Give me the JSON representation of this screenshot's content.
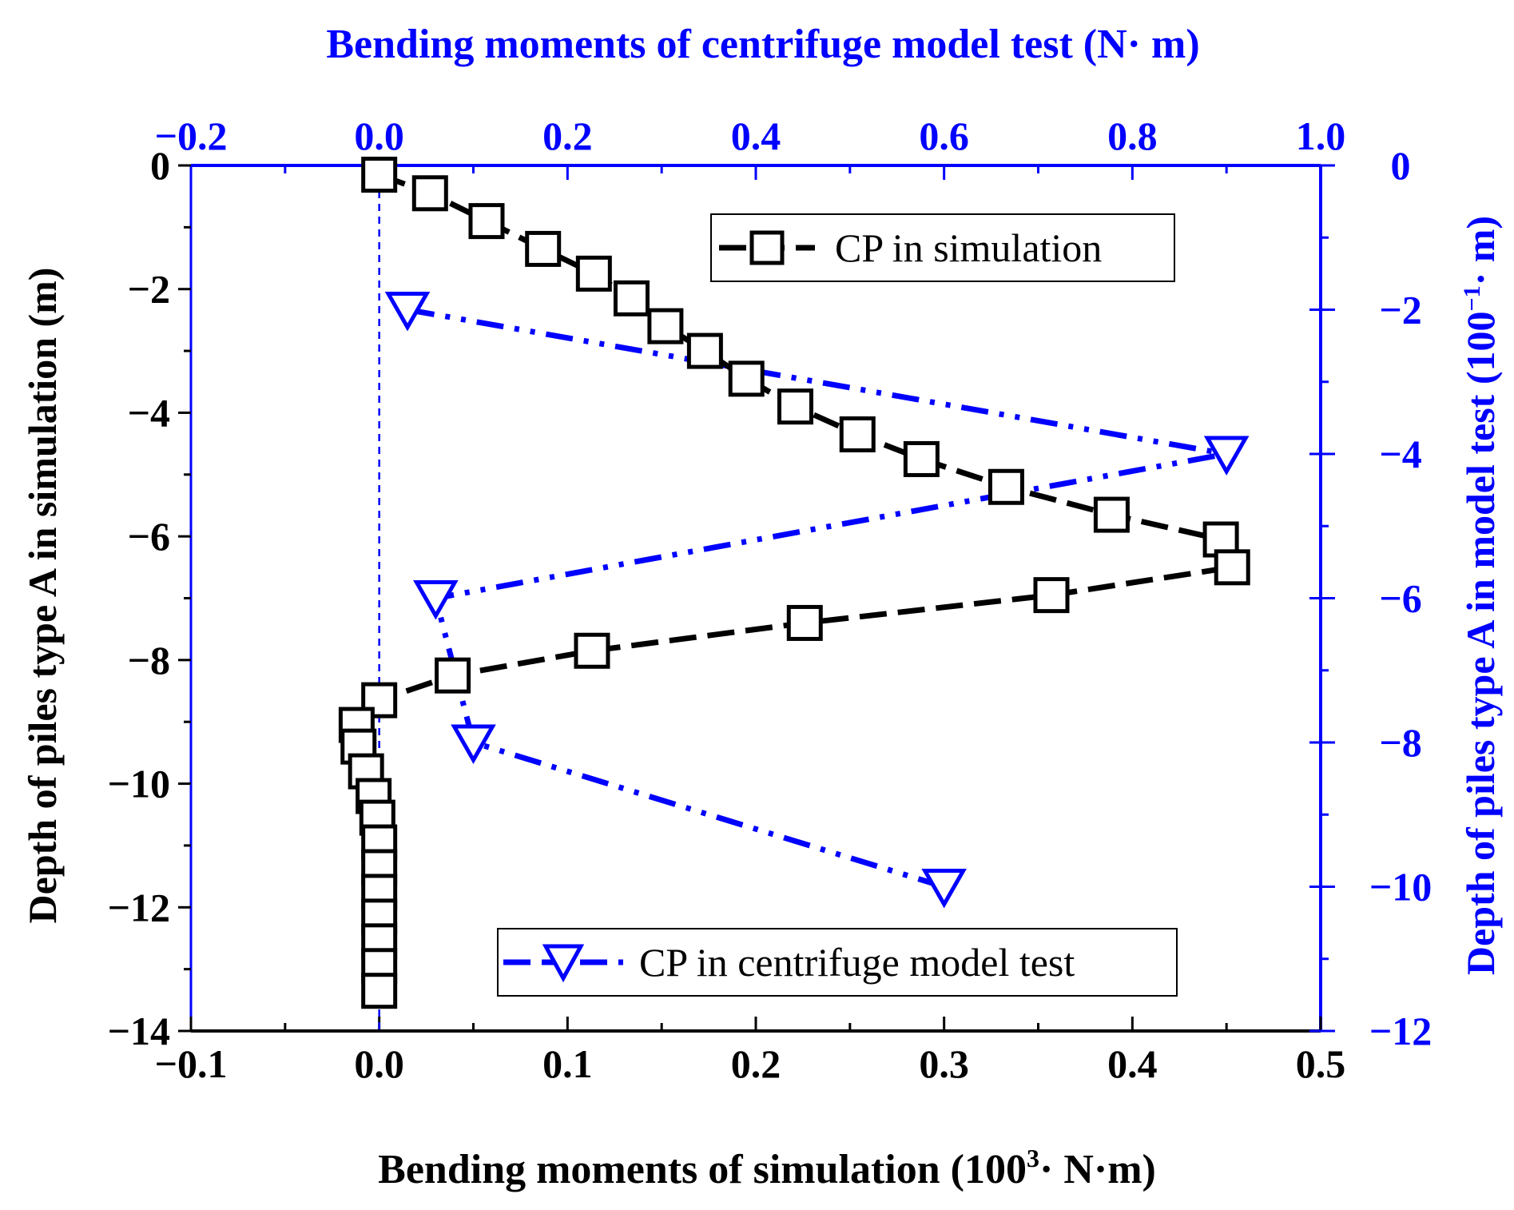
{
  "chart_data": {
    "type": "line",
    "title_top": "Bending moments of centrifuge model test (N· m)",
    "xlabel_bottom": "Bending moments of  simulation (100",
    "xlabel_bottom_sup": "3",
    "xlabel_bottom_end": "· N·m)",
    "ylabel_left": "Depth of piles type A in simulation (m)",
    "ylabel_right_pre": "Depth of piles type A in model test (100",
    "ylabel_right_sup": "−1",
    "ylabel_right_end": "· m)",
    "x_bottom": {
      "range": [
        -0.1,
        0.5
      ],
      "ticks": [
        "−0.1",
        "0.0",
        "0.1",
        "0.2",
        "0.3",
        "0.4",
        "0.5"
      ],
      "tick_values": [
        -0.1,
        0.0,
        0.1,
        0.2,
        0.3,
        0.4,
        0.5
      ]
    },
    "x_top": {
      "range": [
        -0.2,
        1.0
      ],
      "ticks": [
        "−0.2",
        "0.0",
        "0.2",
        "0.4",
        "0.6",
        "0.8",
        "1.0"
      ],
      "tick_values": [
        -0.2,
        0.0,
        0.2,
        0.4,
        0.6,
        0.8,
        1.0
      ]
    },
    "y_left": {
      "range": [
        -14,
        0
      ],
      "ticks": [
        "0",
        "−2",
        "−4",
        "−6",
        "−8",
        "−10",
        "−12",
        "−14"
      ],
      "tick_values": [
        0,
        -2,
        -4,
        -6,
        -8,
        -10,
        -12,
        -14
      ]
    },
    "y_right": {
      "range": [
        -12,
        0
      ],
      "ticks": [
        "0",
        "−2",
        "−4",
        "−6",
        "−8",
        "−10",
        "−12"
      ],
      "tick_values": [
        0,
        -2,
        -4,
        -6,
        -8,
        -10,
        -12
      ]
    },
    "series": [
      {
        "name": "CP in simulation",
        "color": "#000000",
        "marker": "square",
        "axes": "bottom-left",
        "points": [
          {
            "x": 0.0,
            "y": -0.15
          },
          {
            "x": 0.027,
            "y": -0.45
          },
          {
            "x": 0.057,
            "y": -0.9
          },
          {
            "x": 0.087,
            "y": -1.35
          },
          {
            "x": 0.114,
            "y": -1.75
          },
          {
            "x": 0.134,
            "y": -2.15
          },
          {
            "x": 0.152,
            "y": -2.6
          },
          {
            "x": 0.173,
            "y": -3.0
          },
          {
            "x": 0.195,
            "y": -3.45
          },
          {
            "x": 0.221,
            "y": -3.9
          },
          {
            "x": 0.254,
            "y": -4.35
          },
          {
            "x": 0.288,
            "y": -4.75
          },
          {
            "x": 0.333,
            "y": -5.2
          },
          {
            "x": 0.389,
            "y": -5.65
          },
          {
            "x": 0.447,
            "y": -6.05
          },
          {
            "x": 0.453,
            "y": -6.5
          },
          {
            "x": 0.357,
            "y": -6.95
          },
          {
            "x": 0.226,
            "y": -7.4
          },
          {
            "x": 0.113,
            "y": -7.85
          },
          {
            "x": 0.039,
            "y": -8.25
          },
          {
            "x": 0.0,
            "y": -8.65
          },
          {
            "x": -0.012,
            "y": -9.05
          },
          {
            "x": -0.011,
            "y": -9.4
          },
          {
            "x": -0.007,
            "y": -9.8
          },
          {
            "x": -0.003,
            "y": -10.2
          },
          {
            "x": -0.001,
            "y": -10.55
          },
          {
            "x": 0.0,
            "y": -10.95
          },
          {
            "x": 0.0,
            "y": -11.35
          },
          {
            "x": 0.0,
            "y": -11.75
          },
          {
            "x": 0.0,
            "y": -12.15
          },
          {
            "x": 0.0,
            "y": -12.55
          },
          {
            "x": 0.0,
            "y": -12.95
          },
          {
            "x": 0.0,
            "y": -13.35
          }
        ]
      },
      {
        "name": "CP in centrifuge model test",
        "color": "#0000ff",
        "marker": "triangle-down",
        "axes": "top-right",
        "points": [
          {
            "x": 0.03,
            "y": -2.0
          },
          {
            "x": 0.9,
            "y": -4.0
          },
          {
            "x": 0.06,
            "y": -6.0
          },
          {
            "x": 0.1,
            "y": -8.0
          },
          {
            "x": 0.6,
            "y": -10.0
          }
        ]
      }
    ],
    "reference_line": {
      "x": 0.0,
      "color": "#0000ff"
    },
    "legend": [
      {
        "label": "CP in simulation",
        "placement": "top-right"
      },
      {
        "label": "CP in centrifuge model test",
        "placement": "bottom-right"
      }
    ]
  }
}
